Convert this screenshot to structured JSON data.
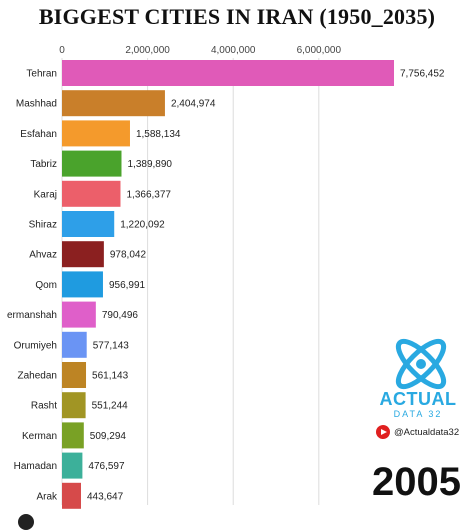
{
  "chart_data": {
    "type": "bar",
    "orientation": "horizontal",
    "title": "BIGGEST CITIES IN IRAN (1950_2035)",
    "xlim": [
      0,
      7756452
    ],
    "x_ticks": [
      {
        "value": 0,
        "label": "0"
      },
      {
        "value": 2000000,
        "label": "2,000,000"
      },
      {
        "value": 4000000,
        "label": "4,000,000"
      },
      {
        "value": 6000000,
        "label": "6,000,000"
      }
    ],
    "grid": true,
    "categories": [
      "Tehran",
      "Mashhad",
      "Esfahan",
      "Tabriz",
      "Karaj",
      "Shiraz",
      "Ahvaz",
      "Qom",
      "ermanshah",
      "Orumiyeh",
      "Zahedan",
      "Rasht",
      "Kerman",
      "Hamadan",
      "Arak"
    ],
    "values": [
      7756452,
      2404974,
      1588134,
      1389890,
      1366377,
      1220092,
      978042,
      956991,
      790496,
      577143,
      561143,
      551244,
      509294,
      476597,
      443647
    ],
    "value_labels": [
      "7,756,452",
      "2,404,974",
      "1,588,134",
      "1,389,890",
      "1,366,377",
      "1,220,092",
      "978,042",
      "956,991",
      "790,496",
      "577,143",
      "561,143",
      "551,244",
      "509,294",
      "476,597",
      "443,647"
    ],
    "colors": [
      "#e05ab8",
      "#c97f2a",
      "#f49a2c",
      "#4aa32c",
      "#ec5f6a",
      "#2e9fe8",
      "#8b2020",
      "#1f9be0",
      "#df5fc9",
      "#6a94f4",
      "#bd8424",
      "#a19524",
      "#79a125",
      "#3cb09a",
      "#d64a4a"
    ]
  },
  "brand": {
    "name": "ACTUAL",
    "subtitle": "DATA 32",
    "channel_handle": "@Actualdata32",
    "logo_icon": "atom-logo-icon",
    "channel_icon": "youtube-play-icon",
    "accent": "#29a9e1"
  },
  "year": "2005"
}
